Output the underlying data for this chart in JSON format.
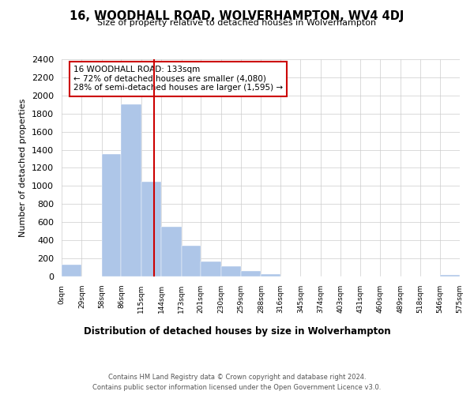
{
  "title": "16, WOODHALL ROAD, WOLVERHAMPTON, WV4 4DJ",
  "subtitle": "Size of property relative to detached houses in Wolverhampton",
  "xlabel": "Distribution of detached houses by size in Wolverhampton",
  "ylabel": "Number of detached properties",
  "bar_color": "#aec6e8",
  "bin_edges": [
    0,
    29,
    58,
    86,
    115,
    144,
    173,
    201,
    230,
    259,
    288,
    316,
    345,
    374,
    403,
    431,
    460,
    489,
    518,
    546,
    575
  ],
  "bin_labels": [
    "0sqm",
    "29sqm",
    "58sqm",
    "86sqm",
    "115sqm",
    "144sqm",
    "173sqm",
    "201sqm",
    "230sqm",
    "259sqm",
    "288sqm",
    "316sqm",
    "345sqm",
    "374sqm",
    "403sqm",
    "431sqm",
    "460sqm",
    "489sqm",
    "518sqm",
    "546sqm",
    "575sqm"
  ],
  "bar_heights": [
    130,
    0,
    1350,
    1900,
    1050,
    550,
    340,
    170,
    110,
    60,
    30,
    0,
    0,
    0,
    0,
    0,
    0,
    0,
    0,
    20
  ],
  "vline_x": 133,
  "vline_color": "#cc0000",
  "ylim": [
    0,
    2400
  ],
  "yticks": [
    0,
    200,
    400,
    600,
    800,
    1000,
    1200,
    1400,
    1600,
    1800,
    2000,
    2200,
    2400
  ],
  "annotation_title": "16 WOODHALL ROAD: 133sqm",
  "annotation_line1": "← 72% of detached houses are smaller (4,080)",
  "annotation_line2": "28% of semi-detached houses are larger (1,595) →",
  "footer_line1": "Contains HM Land Registry data © Crown copyright and database right 2024.",
  "footer_line2": "Contains public sector information licensed under the Open Government Licence v3.0.",
  "background_color": "#ffffff",
  "grid_color": "#cccccc"
}
